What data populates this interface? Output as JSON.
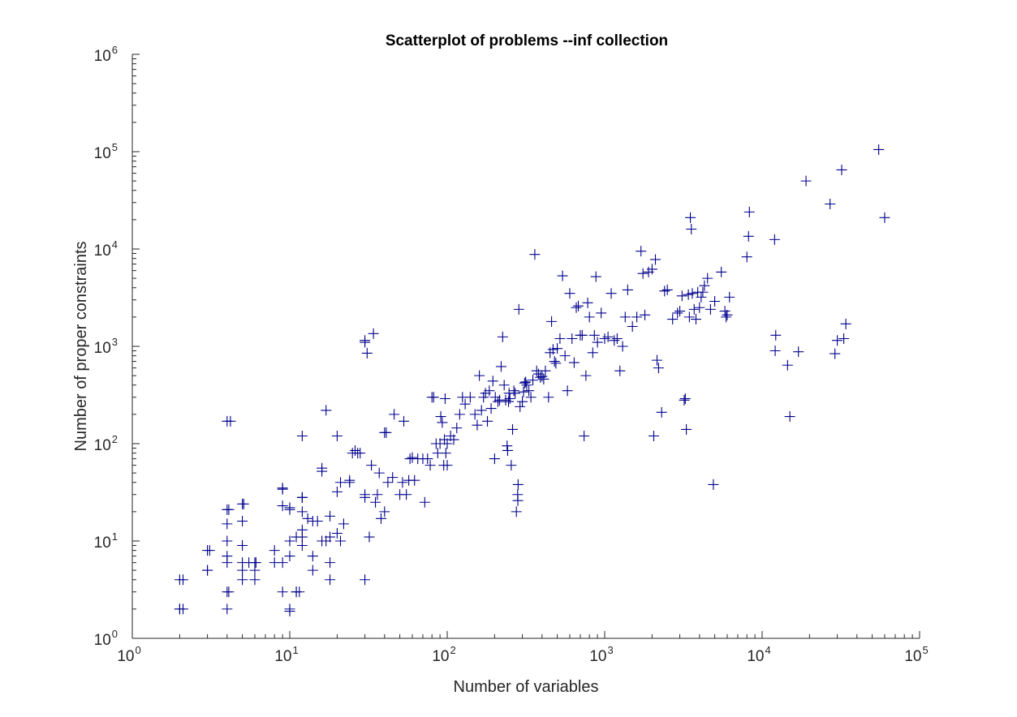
{
  "chart_data": {
    "type": "scatter",
    "title": "Scatterplot of problems --inf collection",
    "xlabel": "Number of variables",
    "ylabel": "Number of proper constraints",
    "xscale": "log",
    "yscale": "log",
    "xlim": [
      1,
      100000
    ],
    "ylim": [
      1,
      1000000
    ],
    "x_ticks": [
      {
        "base": "10",
        "exp": "0"
      },
      {
        "base": "10",
        "exp": "1"
      },
      {
        "base": "10",
        "exp": "2"
      },
      {
        "base": "10",
        "exp": "3"
      },
      {
        "base": "10",
        "exp": "4"
      },
      {
        "base": "10",
        "exp": "5"
      }
    ],
    "y_ticks": [
      {
        "base": "10",
        "exp": "0"
      },
      {
        "base": "10",
        "exp": "1"
      },
      {
        "base": "10",
        "exp": "2"
      },
      {
        "base": "10",
        "exp": "3"
      },
      {
        "base": "10",
        "exp": "4"
      },
      {
        "base": "10",
        "exp": "5"
      },
      {
        "base": "10",
        "exp": "6"
      }
    ],
    "grid": false,
    "marker": "+",
    "marker_color": "#00008B",
    "points": [
      [
        2,
        2
      ],
      [
        2,
        2
      ],
      [
        2.1,
        2
      ],
      [
        2,
        4
      ],
      [
        2.1,
        4
      ],
      [
        3,
        5
      ],
      [
        3,
        8
      ],
      [
        3.1,
        8
      ],
      [
        3,
        5
      ],
      [
        4,
        2
      ],
      [
        4,
        3
      ],
      [
        4.1,
        3
      ],
      [
        4,
        7
      ],
      [
        4,
        6
      ],
      [
        4,
        10
      ],
      [
        4,
        15
      ],
      [
        4,
        21
      ],
      [
        4.1,
        21
      ],
      [
        4,
        170
      ],
      [
        4.2,
        170
      ],
      [
        5,
        4
      ],
      [
        5,
        5
      ],
      [
        5,
        6
      ],
      [
        5,
        9
      ],
      [
        5,
        16
      ],
      [
        5,
        24
      ],
      [
        5.1,
        24
      ],
      [
        5.5,
        6
      ],
      [
        6,
        4
      ],
      [
        6,
        6
      ],
      [
        6.1,
        6
      ],
      [
        6,
        5
      ],
      [
        8,
        8
      ],
      [
        8,
        6
      ],
      [
        9,
        3
      ],
      [
        9,
        6
      ],
      [
        9,
        23
      ],
      [
        9,
        34
      ],
      [
        9,
        35
      ],
      [
        10,
        2
      ],
      [
        10,
        1.9
      ],
      [
        10,
        7
      ],
      [
        10,
        10
      ],
      [
        10,
        22
      ],
      [
        10,
        21
      ],
      [
        11,
        3
      ],
      [
        11,
        11
      ],
      [
        11,
        3
      ],
      [
        11.5,
        3
      ],
      [
        12,
        9
      ],
      [
        12,
        11
      ],
      [
        12,
        13
      ],
      [
        12,
        20
      ],
      [
        12,
        28
      ],
      [
        12,
        28
      ],
      [
        12,
        120
      ],
      [
        13,
        17
      ],
      [
        14,
        5
      ],
      [
        14,
        7
      ],
      [
        14,
        16
      ],
      [
        15,
        16
      ],
      [
        16,
        10
      ],
      [
        16,
        52
      ],
      [
        16,
        56
      ],
      [
        17,
        10
      ],
      [
        17,
        220
      ],
      [
        18,
        4
      ],
      [
        18,
        6
      ],
      [
        18,
        11
      ],
      [
        18,
        18
      ],
      [
        20,
        12
      ],
      [
        20,
        32
      ],
      [
        20,
        120
      ],
      [
        21,
        10
      ],
      [
        21,
        40
      ],
      [
        22,
        15
      ],
      [
        24,
        40
      ],
      [
        24,
        42
      ],
      [
        25,
        80
      ],
      [
        26,
        85
      ],
      [
        27,
        80
      ],
      [
        28,
        80
      ],
      [
        30,
        1100
      ],
      [
        30,
        1150
      ],
      [
        31,
        850
      ],
      [
        30,
        30
      ],
      [
        30,
        4
      ],
      [
        30,
        28
      ],
      [
        32,
        11
      ],
      [
        33,
        60
      ],
      [
        34,
        1350
      ],
      [
        35,
        25
      ],
      [
        36,
        30
      ],
      [
        37,
        50
      ],
      [
        38,
        17
      ],
      [
        40,
        20
      ],
      [
        40,
        130
      ],
      [
        41,
        130
      ],
      [
        42,
        40
      ],
      [
        45,
        45
      ],
      [
        46,
        200
      ],
      [
        50,
        30
      ],
      [
        52,
        40
      ],
      [
        53,
        170
      ],
      [
        55,
        30
      ],
      [
        57,
        42
      ],
      [
        58,
        70
      ],
      [
        60,
        72
      ],
      [
        62,
        42
      ],
      [
        65,
        70
      ],
      [
        70,
        70
      ],
      [
        72,
        25
      ],
      [
        75,
        70
      ],
      [
        78,
        60
      ],
      [
        80,
        300
      ],
      [
        82,
        300
      ],
      [
        85,
        100
      ],
      [
        87,
        80
      ],
      [
        90,
        100
      ],
      [
        91,
        190
      ],
      [
        93,
        165
      ],
      [
        95,
        60
      ],
      [
        96,
        110
      ],
      [
        97,
        290
      ],
      [
        98,
        80
      ],
      [
        100,
        60
      ],
      [
        100,
        100
      ],
      [
        105,
        120
      ],
      [
        110,
        110
      ],
      [
        115,
        145
      ],
      [
        120,
        200
      ],
      [
        125,
        300
      ],
      [
        130,
        255
      ],
      [
        140,
        300
      ],
      [
        150,
        200
      ],
      [
        155,
        155
      ],
      [
        160,
        500
      ],
      [
        165,
        220
      ],
      [
        170,
        300
      ],
      [
        175,
        330
      ],
      [
        180,
        170
      ],
      [
        185,
        350
      ],
      [
        190,
        230
      ],
      [
        195,
        440
      ],
      [
        200,
        70
      ],
      [
        202,
        300
      ],
      [
        210,
        270
      ],
      [
        215,
        280
      ],
      [
        220,
        620
      ],
      [
        225,
        1250
      ],
      [
        230,
        400
      ],
      [
        235,
        280
      ],
      [
        240,
        95
      ],
      [
        242,
        85
      ],
      [
        245,
        270
      ],
      [
        247,
        330
      ],
      [
        250,
        290
      ],
      [
        255,
        60
      ],
      [
        260,
        140
      ],
      [
        265,
        350
      ],
      [
        270,
        330
      ],
      [
        275,
        20
      ],
      [
        280,
        30
      ],
      [
        281,
        26
      ],
      [
        282,
        38
      ],
      [
        285,
        2400
      ],
      [
        290,
        240
      ],
      [
        300,
        270
      ],
      [
        305,
        340
      ],
      [
        310,
        420
      ],
      [
        315,
        430
      ],
      [
        320,
        400
      ],
      [
        330,
        350
      ],
      [
        340,
        300
      ],
      [
        350,
        450
      ],
      [
        360,
        8800
      ],
      [
        370,
        560
      ],
      [
        380,
        520
      ],
      [
        390,
        480
      ],
      [
        400,
        490
      ],
      [
        410,
        460
      ],
      [
        420,
        560
      ],
      [
        440,
        300
      ],
      [
        450,
        860
      ],
      [
        460,
        1800
      ],
      [
        470,
        930
      ],
      [
        480,
        700
      ],
      [
        490,
        670
      ],
      [
        500,
        950
      ],
      [
        520,
        1200
      ],
      [
        540,
        5300
      ],
      [
        560,
        800
      ],
      [
        580,
        350
      ],
      [
        600,
        3500
      ],
      [
        620,
        1200
      ],
      [
        640,
        680
      ],
      [
        660,
        2500
      ],
      [
        680,
        2600
      ],
      [
        700,
        1300
      ],
      [
        720,
        1300
      ],
      [
        740,
        120
      ],
      [
        760,
        500
      ],
      [
        780,
        2800
      ],
      [
        800,
        2000
      ],
      [
        840,
        860
      ],
      [
        860,
        1300
      ],
      [
        880,
        5200
      ],
      [
        900,
        1100
      ],
      [
        950,
        2200
      ],
      [
        1000,
        1200
      ],
      [
        1050,
        1250
      ],
      [
        1100,
        3500
      ],
      [
        1150,
        1150
      ],
      [
        1200,
        1200
      ],
      [
        1250,
        560
      ],
      [
        1300,
        1000
      ],
      [
        1350,
        2000
      ],
      [
        1400,
        3800
      ],
      [
        1500,
        1600
      ],
      [
        1600,
        2000
      ],
      [
        1700,
        9500
      ],
      [
        1750,
        5600
      ],
      [
        1800,
        2100
      ],
      [
        1900,
        5800
      ],
      [
        2000,
        6200
      ],
      [
        2050,
        120
      ],
      [
        2100,
        7800
      ],
      [
        2150,
        720
      ],
      [
        2200,
        600
      ],
      [
        2300,
        210
      ],
      [
        2400,
        3700
      ],
      [
        2500,
        3800
      ],
      [
        2700,
        1900
      ],
      [
        2900,
        2200
      ],
      [
        3000,
        2300
      ],
      [
        3100,
        3300
      ],
      [
        3200,
        280
      ],
      [
        3250,
        290
      ],
      [
        3300,
        140
      ],
      [
        3400,
        3400
      ],
      [
        3450,
        2000
      ],
      [
        3500,
        21000
      ],
      [
        3550,
        16000
      ],
      [
        3600,
        3500
      ],
      [
        3700,
        2400
      ],
      [
        3800,
        1900
      ],
      [
        3900,
        3600
      ],
      [
        4000,
        2500
      ],
      [
        4100,
        3200
      ],
      [
        4200,
        3600
      ],
      [
        4300,
        4200
      ],
      [
        4500,
        5000
      ],
      [
        4700,
        2400
      ],
      [
        4900,
        38
      ],
      [
        5000,
        2900
      ],
      [
        5500,
        5800
      ],
      [
        5800,
        2300
      ],
      [
        5900,
        2000
      ],
      [
        6000,
        2100
      ],
      [
        6200,
        3200
      ],
      [
        8000,
        8300
      ],
      [
        8200,
        13500
      ],
      [
        8300,
        24000
      ],
      [
        12000,
        12500
      ],
      [
        12100,
        900
      ],
      [
        12200,
        1300
      ],
      [
        14500,
        640
      ],
      [
        15000,
        190
      ],
      [
        17000,
        880
      ],
      [
        19000,
        50000
      ],
      [
        27000,
        29000
      ],
      [
        29000,
        840
      ],
      [
        30000,
        1150
      ],
      [
        32000,
        65000
      ],
      [
        33000,
        1200
      ],
      [
        34000,
        1700
      ],
      [
        55000,
        105000
      ],
      [
        60000,
        21000
      ]
    ]
  }
}
